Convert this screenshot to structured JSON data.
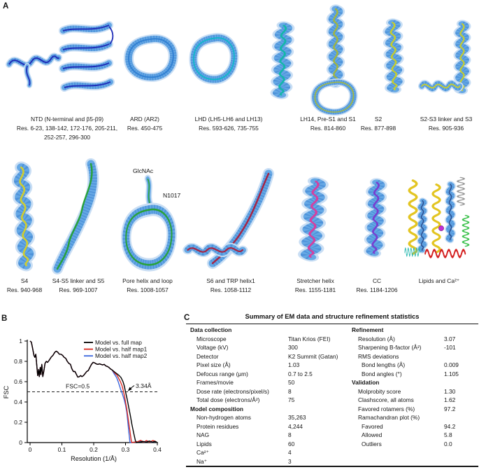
{
  "panels": {
    "a": "A",
    "b": "B",
    "c": "C"
  },
  "figures_row1": [
    {
      "name": "NTD (N-terminal and β5-β9)",
      "res": "Res. 6-23, 138-142, 172-176, 205-211, 252-257, 296-300"
    },
    {
      "name": "ARD (AR2)",
      "res": "Res. 450-475"
    },
    {
      "name": "LHD (LH5-LH6 and LH13)",
      "res": "Res. 593-626, 735-755"
    },
    {
      "name": "LH14, Pre-S1 and S1",
      "res": "Res. 814-860"
    },
    {
      "name": "S2",
      "res": "Res. 877-898"
    },
    {
      "name": "S2-S3 linker and S3",
      "res": "Res. 905-936"
    }
  ],
  "figures_row2": [
    {
      "name": "S4",
      "res": "Res. 940-968"
    },
    {
      "name": "S4-S5 linker and S5",
      "res": "Res. 969-1007"
    },
    {
      "name": "Pore helix and loop",
      "res": "Res. 1008-1057",
      "ann": {
        "glcnac": "GlcNAc",
        "n1017": "N1017"
      }
    },
    {
      "name": "S6 and TRP helix1",
      "res": "Res. 1058-1112"
    },
    {
      "name": "Stretcher helix",
      "res": "Res. 1155-1181"
    },
    {
      "name": "CC",
      "res": "Res. 1184-1206"
    },
    {
      "name": "Lipids and Ca²⁺",
      "res": ""
    }
  ],
  "chart_data": {
    "type": "line",
    "title": "",
    "xlabel": "Resolution (1/Å)",
    "ylabel": "FSC",
    "xlim": [
      0,
      0.4
    ],
    "ylim": [
      0,
      1
    ],
    "xticks": [
      0,
      0.1,
      0.2,
      0.3,
      0.4
    ],
    "yticks": [
      0,
      0.2,
      0.4,
      0.6,
      0.8,
      1
    ],
    "grid": false,
    "legend_position": "top-right",
    "annotations": {
      "fsc_line": {
        "y": 0.5,
        "label": "FSC=0.5"
      },
      "resolution_marker": {
        "x": 0.3,
        "y": 0.5,
        "label": "3.34Å"
      }
    },
    "series": [
      {
        "name": "Model vs. full map",
        "color": "#000000",
        "points": [
          [
            0,
            1
          ],
          [
            0.004,
            0.99
          ],
          [
            0.008,
            0.93
          ],
          [
            0.012,
            0.86
          ],
          [
            0.015,
            0.84
          ],
          [
            0.018,
            0.87
          ],
          [
            0.021,
            0.76
          ],
          [
            0.024,
            0.66
          ],
          [
            0.027,
            0.72
          ],
          [
            0.029,
            0.65
          ],
          [
            0.032,
            0.74
          ],
          [
            0.034,
            0.67
          ],
          [
            0.037,
            0.77
          ],
          [
            0.04,
            0.65
          ],
          [
            0.043,
            0.7
          ],
          [
            0.047,
            0.78
          ],
          [
            0.051,
            0.8
          ],
          [
            0.055,
            0.79
          ],
          [
            0.06,
            0.81
          ],
          [
            0.066,
            0.84
          ],
          [
            0.072,
            0.86
          ],
          [
            0.078,
            0.89
          ],
          [
            0.082,
            0.9
          ],
          [
            0.087,
            0.89
          ],
          [
            0.092,
            0.87
          ],
          [
            0.097,
            0.87
          ],
          [
            0.102,
            0.86
          ],
          [
            0.107,
            0.84
          ],
          [
            0.112,
            0.83
          ],
          [
            0.117,
            0.8
          ],
          [
            0.122,
            0.78
          ],
          [
            0.127,
            0.77
          ],
          [
            0.131,
            0.73
          ],
          [
            0.136,
            0.7
          ],
          [
            0.141,
            0.7
          ],
          [
            0.146,
            0.67
          ],
          [
            0.15,
            0.645
          ],
          [
            0.155,
            0.65
          ],
          [
            0.159,
            0.66
          ],
          [
            0.163,
            0.65
          ],
          [
            0.168,
            0.66
          ],
          [
            0.173,
            0.68
          ],
          [
            0.178,
            0.7
          ],
          [
            0.183,
            0.71
          ],
          [
            0.188,
            0.74
          ],
          [
            0.193,
            0.77
          ],
          [
            0.198,
            0.79
          ],
          [
            0.203,
            0.785
          ],
          [
            0.208,
            0.775
          ],
          [
            0.213,
            0.77
          ],
          [
            0.218,
            0.775
          ],
          [
            0.223,
            0.77
          ],
          [
            0.228,
            0.765
          ],
          [
            0.233,
            0.77
          ],
          [
            0.238,
            0.755
          ],
          [
            0.243,
            0.75
          ],
          [
            0.248,
            0.74
          ],
          [
            0.253,
            0.725
          ],
          [
            0.258,
            0.715
          ],
          [
            0.262,
            0.705
          ],
          [
            0.268,
            0.69
          ],
          [
            0.274,
            0.675
          ],
          [
            0.28,
            0.66
          ],
          [
            0.286,
            0.64
          ],
          [
            0.292,
            0.6
          ],
          [
            0.296,
            0.56
          ],
          [
            0.3,
            0.5
          ],
          [
            0.305,
            0.43
          ],
          [
            0.31,
            0.35
          ],
          [
            0.315,
            0.27
          ],
          [
            0.32,
            0.18
          ],
          [
            0.326,
            0.09
          ],
          [
            0.331,
            0.02
          ],
          [
            0.334,
            0
          ],
          [
            0.345,
            0.005
          ],
          [
            0.355,
            0.012
          ],
          [
            0.365,
            0.004
          ],
          [
            0.375,
            0.015
          ],
          [
            0.385,
            0.005
          ],
          [
            0.392,
            0.012
          ],
          [
            0.398,
            0.006
          ]
        ]
      },
      {
        "name": "Model vs. half map1",
        "color": "#d92b22",
        "points": [
          [
            0,
            1
          ],
          [
            0.004,
            0.99
          ],
          [
            0.008,
            0.93
          ],
          [
            0.012,
            0.86
          ],
          [
            0.015,
            0.84
          ],
          [
            0.018,
            0.87
          ],
          [
            0.021,
            0.76
          ],
          [
            0.024,
            0.66
          ],
          [
            0.027,
            0.72
          ],
          [
            0.029,
            0.65
          ],
          [
            0.032,
            0.74
          ],
          [
            0.034,
            0.67
          ],
          [
            0.037,
            0.77
          ],
          [
            0.04,
            0.65
          ],
          [
            0.043,
            0.7
          ],
          [
            0.047,
            0.78
          ],
          [
            0.051,
            0.8
          ],
          [
            0.055,
            0.79
          ],
          [
            0.06,
            0.81
          ],
          [
            0.066,
            0.84
          ],
          [
            0.072,
            0.86
          ],
          [
            0.078,
            0.89
          ],
          [
            0.082,
            0.9
          ],
          [
            0.087,
            0.89
          ],
          [
            0.092,
            0.87
          ],
          [
            0.097,
            0.87
          ],
          [
            0.102,
            0.86
          ],
          [
            0.107,
            0.84
          ],
          [
            0.112,
            0.83
          ],
          [
            0.117,
            0.8
          ],
          [
            0.122,
            0.78
          ],
          [
            0.127,
            0.77
          ],
          [
            0.131,
            0.73
          ],
          [
            0.136,
            0.7
          ],
          [
            0.141,
            0.7
          ],
          [
            0.146,
            0.67
          ],
          [
            0.15,
            0.645
          ],
          [
            0.155,
            0.65
          ],
          [
            0.159,
            0.66
          ],
          [
            0.163,
            0.65
          ],
          [
            0.168,
            0.66
          ],
          [
            0.173,
            0.68
          ],
          [
            0.178,
            0.7
          ],
          [
            0.183,
            0.71
          ],
          [
            0.188,
            0.74
          ],
          [
            0.193,
            0.77
          ],
          [
            0.198,
            0.79
          ],
          [
            0.203,
            0.785
          ],
          [
            0.208,
            0.775
          ],
          [
            0.213,
            0.77
          ],
          [
            0.218,
            0.775
          ],
          [
            0.223,
            0.77
          ],
          [
            0.228,
            0.765
          ],
          [
            0.233,
            0.77
          ],
          [
            0.238,
            0.755
          ],
          [
            0.243,
            0.75
          ],
          [
            0.248,
            0.74
          ],
          [
            0.253,
            0.725
          ],
          [
            0.258,
            0.715
          ],
          [
            0.262,
            0.7
          ],
          [
            0.268,
            0.68
          ],
          [
            0.274,
            0.66
          ],
          [
            0.279,
            0.63
          ],
          [
            0.284,
            0.6
          ],
          [
            0.289,
            0.56
          ],
          [
            0.294,
            0.5
          ],
          [
            0.299,
            0.42
          ],
          [
            0.304,
            0.33
          ],
          [
            0.309,
            0.22
          ],
          [
            0.314,
            0.11
          ],
          [
            0.318,
            0.02
          ],
          [
            0.32,
            0
          ],
          [
            0.338,
            0.01
          ],
          [
            0.348,
            0.022
          ],
          [
            0.357,
            0.005
          ],
          [
            0.366,
            0.02
          ],
          [
            0.376,
            0.006
          ],
          [
            0.386,
            0.02
          ],
          [
            0.395,
            0.012
          ]
        ]
      },
      {
        "name": "Model vs. half map2",
        "color": "#3a66dd",
        "points": [
          [
            0,
            1
          ],
          [
            0.004,
            0.99
          ],
          [
            0.008,
            0.93
          ],
          [
            0.012,
            0.86
          ],
          [
            0.015,
            0.84
          ],
          [
            0.018,
            0.87
          ],
          [
            0.021,
            0.76
          ],
          [
            0.024,
            0.66
          ],
          [
            0.027,
            0.72
          ],
          [
            0.029,
            0.65
          ],
          [
            0.032,
            0.74
          ],
          [
            0.034,
            0.67
          ],
          [
            0.037,
            0.77
          ],
          [
            0.04,
            0.65
          ],
          [
            0.043,
            0.7
          ],
          [
            0.047,
            0.78
          ],
          [
            0.051,
            0.8
          ],
          [
            0.055,
            0.79
          ],
          [
            0.06,
            0.81
          ],
          [
            0.066,
            0.84
          ],
          [
            0.072,
            0.86
          ],
          [
            0.078,
            0.89
          ],
          [
            0.082,
            0.9
          ],
          [
            0.087,
            0.89
          ],
          [
            0.092,
            0.87
          ],
          [
            0.097,
            0.87
          ],
          [
            0.102,
            0.86
          ],
          [
            0.107,
            0.84
          ],
          [
            0.112,
            0.83
          ],
          [
            0.117,
            0.8
          ],
          [
            0.122,
            0.78
          ],
          [
            0.127,
            0.77
          ],
          [
            0.131,
            0.73
          ],
          [
            0.136,
            0.7
          ],
          [
            0.141,
            0.7
          ],
          [
            0.146,
            0.67
          ],
          [
            0.15,
            0.645
          ],
          [
            0.155,
            0.65
          ],
          [
            0.159,
            0.66
          ],
          [
            0.163,
            0.65
          ],
          [
            0.168,
            0.66
          ],
          [
            0.173,
            0.68
          ],
          [
            0.178,
            0.7
          ],
          [
            0.183,
            0.71
          ],
          [
            0.188,
            0.74
          ],
          [
            0.193,
            0.77
          ],
          [
            0.198,
            0.79
          ],
          [
            0.203,
            0.785
          ],
          [
            0.208,
            0.775
          ],
          [
            0.213,
            0.77
          ],
          [
            0.218,
            0.775
          ],
          [
            0.223,
            0.77
          ],
          [
            0.228,
            0.765
          ],
          [
            0.233,
            0.77
          ],
          [
            0.238,
            0.755
          ],
          [
            0.243,
            0.75
          ],
          [
            0.248,
            0.74
          ],
          [
            0.253,
            0.725
          ],
          [
            0.258,
            0.715
          ],
          [
            0.262,
            0.69
          ],
          [
            0.267,
            0.665
          ],
          [
            0.272,
            0.64
          ],
          [
            0.277,
            0.6
          ],
          [
            0.281,
            0.56
          ],
          [
            0.285,
            0.52
          ],
          [
            0.288,
            0.5
          ],
          [
            0.292,
            0.46
          ],
          [
            0.296,
            0.42
          ],
          [
            0.3,
            0.37
          ],
          [
            0.304,
            0.3
          ],
          [
            0.307,
            0.21
          ],
          [
            0.31,
            0.12
          ],
          [
            0.313,
            0.03
          ],
          [
            0.314,
            0
          ],
          [
            0.34,
            0.006
          ],
          [
            0.35,
            0.016
          ],
          [
            0.36,
            0.004
          ],
          [
            0.37,
            0.014
          ],
          [
            0.383,
            0.004
          ],
          [
            0.393,
            0.01
          ]
        ]
      }
    ]
  },
  "tableC": {
    "title": "Summary of EM data and structure refinement statistics",
    "left": [
      {
        "label": "Data collection",
        "value": "",
        "style": "header"
      },
      {
        "label": "Microscope",
        "value": "Titan Krios (FEI)",
        "style": "item"
      },
      {
        "label": "Voltage (kV)",
        "value": "300",
        "style": "item"
      },
      {
        "label": "Detector",
        "value": "K2 Summit (Gatan)",
        "style": "item"
      },
      {
        "label": "Pixel size (Å)",
        "value": "1.03",
        "style": "item"
      },
      {
        "label": "Defocus range (μm)",
        "value": "0.7 to 2.5",
        "style": "item"
      },
      {
        "label": "Frames/movie",
        "value": "50",
        "style": "item"
      },
      {
        "label": "Dose rate (electrons/pixel/s)",
        "value": "8",
        "style": "item"
      },
      {
        "label": "Total dose (electrons/Å²)",
        "value": "75",
        "style": "item"
      },
      {
        "label": "Model composition",
        "value": "",
        "style": "header"
      },
      {
        "label": "Non-hydrogen atoms",
        "value": "35,263",
        "style": "item"
      },
      {
        "label": "Protein residues",
        "value": "4,244",
        "style": "item"
      },
      {
        "label": "NAG",
        "value": "8",
        "style": "item"
      },
      {
        "label": "Lipids",
        "value": "60",
        "style": "item"
      },
      {
        "label": "Ca²⁺",
        "value": "4",
        "style": "item"
      },
      {
        "label": "Na⁺",
        "value": "3",
        "style": "item"
      }
    ],
    "right": [
      {
        "label": "Refinement",
        "value": "",
        "style": "header"
      },
      {
        "label": "Resolution (Å)",
        "value": "3.07",
        "style": "item"
      },
      {
        "label": "Sharpening B-factor (Å²)",
        "value": "-101",
        "style": "item"
      },
      {
        "label": "RMS deviations",
        "value": "",
        "style": "sub"
      },
      {
        "label": "Bond lengths (Å)",
        "value": "0.009",
        "style": "item2"
      },
      {
        "label": "Bond angles (°)",
        "value": "1.105",
        "style": "item2"
      },
      {
        "label": "Validation",
        "value": "",
        "style": "header"
      },
      {
        "label": "Molprobity score",
        "value": "1.30",
        "style": "item"
      },
      {
        "label": "Clashscore, all atoms",
        "value": "1.62",
        "style": "item"
      },
      {
        "label": "Favored rotamers (%)",
        "value": "97.2",
        "style": "item"
      },
      {
        "label": "Ramachandran plot (%)",
        "value": "",
        "style": "sub"
      },
      {
        "label": "Favored",
        "value": "94.2",
        "style": "item2"
      },
      {
        "label": "Allowed",
        "value": "5.8",
        "style": "item2"
      },
      {
        "label": "Outliers",
        "value": "0.0",
        "style": "item2"
      }
    ]
  }
}
